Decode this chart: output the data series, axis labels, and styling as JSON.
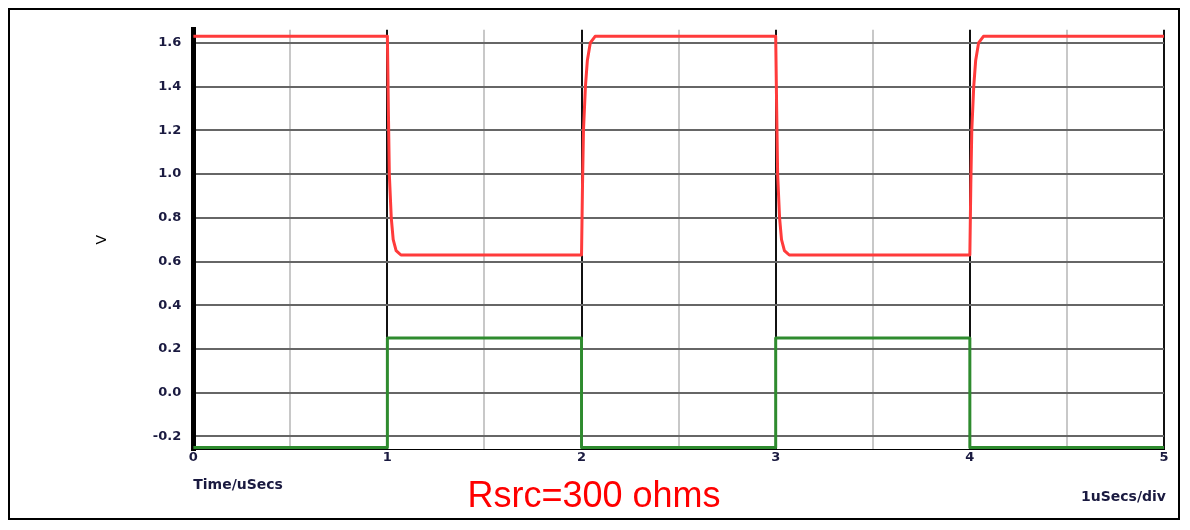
{
  "chart_data": {
    "type": "line",
    "xlabel": "Time/uSecs",
    "ylabel": "V",
    "annotations": [
      "Rsrc=300 ohms",
      "1uSecs/div"
    ],
    "xlim": [
      0,
      5
    ],
    "ylim": [
      -0.26,
      1.66
    ],
    "xticks": [
      0,
      {
        "value": 0.5,
        "label": null
      },
      1,
      {
        "value": 1.5,
        "label": null
      },
      2,
      {
        "value": 2.5,
        "label": null
      },
      3,
      {
        "value": 3.5,
        "label": null
      },
      4,
      {
        "value": 4.5,
        "label": null
      },
      5
    ],
    "yticks": [
      {
        "value": -0.2,
        "label": "-0.2"
      },
      {
        "value": 0,
        "label": "0.0"
      },
      0.2,
      0.4,
      0.6,
      0.8,
      {
        "value": 1,
        "label": "1.0"
      },
      1.2,
      1.4,
      1.6
    ],
    "grid": true,
    "legend": false,
    "series": [
      {
        "color": "#ff3b3b",
        "x": [
          0,
          1,
          1.005,
          1.01,
          1.02,
          1.03,
          1.045,
          1.07,
          2,
          2.005,
          2.01,
          2.02,
          2.03,
          2.045,
          2.07,
          3,
          3.005,
          3.01,
          3.02,
          3.03,
          3.045,
          3.07,
          4,
          4.005,
          4.01,
          4.02,
          4.03,
          4.045,
          4.07,
          5
        ],
        "values": [
          1.63,
          1.63,
          1.3,
          1.0,
          0.8,
          0.7,
          0.65,
          0.63,
          0.63,
          0.95,
          1.2,
          1.4,
          1.52,
          1.6,
          1.63,
          1.63,
          1.3,
          1.0,
          0.8,
          0.7,
          0.65,
          0.63,
          0.63,
          0.95,
          1.2,
          1.4,
          1.52,
          1.6,
          1.63,
          1.63
        ]
      },
      {
        "color": "#2e8b2e",
        "x": [
          0,
          1,
          1,
          2,
          2,
          3,
          3,
          4,
          4,
          5
        ],
        "values": [
          -0.25,
          -0.25,
          0.25,
          0.25,
          -0.25,
          -0.25,
          0.25,
          0.25,
          -0.25,
          -0.25
        ]
      }
    ]
  }
}
